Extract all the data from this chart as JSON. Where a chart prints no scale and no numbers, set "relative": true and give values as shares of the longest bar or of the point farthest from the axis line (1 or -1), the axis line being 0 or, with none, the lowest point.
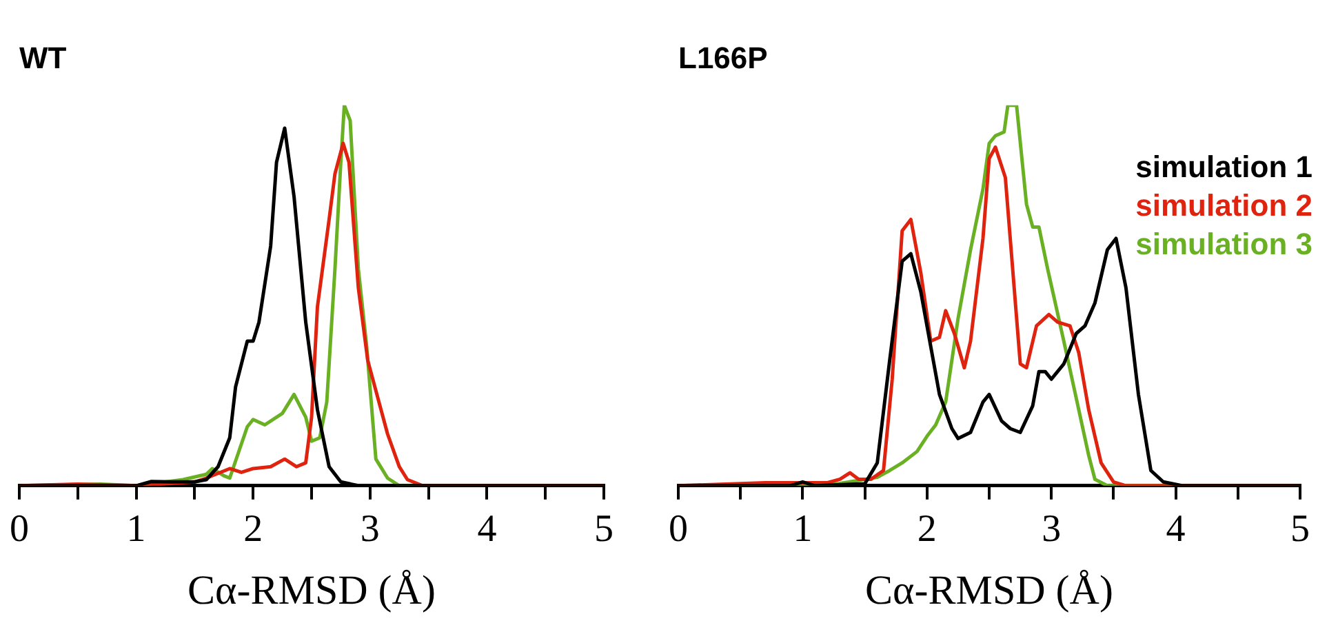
{
  "chart_data": [
    {
      "type": "line",
      "title": "WT",
      "xlabel": "Cα-RMSD (Å)",
      "relative": true,
      "legend": false,
      "xlim": [
        0,
        5
      ],
      "xticks": [
        0,
        {
          "value": 0.5,
          "label": null
        },
        1,
        {
          "value": 1.5,
          "label": null
        },
        2,
        {
          "value": 2.5,
          "label": null
        },
        3,
        {
          "value": 3.5,
          "label": null
        },
        4,
        {
          "value": 4.5,
          "label": null
        },
        5
      ],
      "series": [
        {
          "color": "#000000",
          "x": [
            0,
            1.0,
            1.13,
            1.3,
            1.5,
            1.6,
            1.7,
            1.8,
            1.85,
            1.95,
            2.0,
            2.05,
            2.15,
            2.2,
            2.27,
            2.35,
            2.45,
            2.55,
            2.65,
            2.75,
            2.9,
            5
          ],
          "values": [
            0,
            0,
            0.011,
            0.01,
            0.01,
            0.016,
            0.05,
            0.126,
            0.26,
            0.38,
            0.38,
            0.43,
            0.63,
            0.85,
            0.94,
            0.76,
            0.43,
            0.2,
            0.05,
            0.01,
            0,
            0
          ]
        },
        {
          "color": "#e0230f",
          "x": [
            0,
            0.5,
            1.0,
            1.5,
            1.6,
            1.8,
            1.9,
            2.0,
            2.15,
            2.27,
            2.37,
            2.45,
            2.5,
            2.55,
            2.65,
            2.7,
            2.77,
            2.82,
            2.9,
            2.98,
            3.05,
            3.15,
            3.25,
            3.32,
            3.45,
            5
          ],
          "values": [
            0,
            0.004,
            0,
            0.01,
            0.02,
            0.045,
            0.035,
            0.045,
            0.05,
            0.07,
            0.05,
            0.06,
            0.18,
            0.47,
            0.7,
            0.82,
            0.9,
            0.85,
            0.52,
            0.33,
            0.25,
            0.136,
            0.05,
            0.016,
            0,
            0
          ]
        },
        {
          "color": "#6ab023",
          "x": [
            0,
            0.7,
            1.0,
            1.4,
            1.6,
            1.65,
            1.75,
            1.8,
            1.95,
            2.0,
            2.1,
            2.25,
            2.35,
            2.45,
            2.5,
            2.57,
            2.63,
            2.7,
            2.75,
            2.78,
            2.83,
            2.9,
            2.97,
            3.05,
            3.15,
            3.25,
            5
          ],
          "values": [
            0,
            0.004,
            0,
            0.016,
            0.03,
            0.045,
            0.026,
            0.02,
            0.155,
            0.174,
            0.16,
            0.19,
            0.24,
            0.18,
            0.117,
            0.126,
            0.22,
            0.57,
            0.85,
            1.0,
            0.96,
            0.57,
            0.37,
            0.07,
            0.02,
            0,
            0
          ]
        }
      ]
    },
    {
      "type": "line",
      "title": "L166P",
      "xlabel": "Cα-RMSD (Å)",
      "relative": true,
      "legend": "top right",
      "xlim": [
        0,
        5
      ],
      "xticks": [
        0,
        {
          "value": 0.5,
          "label": null
        },
        1,
        {
          "value": 1.5,
          "label": null
        },
        2,
        {
          "value": 2.5,
          "label": null
        },
        3,
        {
          "value": 3.5,
          "label": null
        },
        4,
        {
          "value": 4.5,
          "label": null
        },
        5
      ],
      "series": [
        {
          "name": "simulation 1",
          "color": "#000000",
          "x": [
            0,
            0.9,
            1.0,
            1.1,
            1.5,
            1.6,
            1.7,
            1.8,
            1.87,
            1.95,
            2.05,
            2.1,
            2.2,
            2.25,
            2.35,
            2.45,
            2.5,
            2.6,
            2.67,
            2.75,
            2.85,
            2.9,
            2.95,
            3.0,
            3.1,
            3.2,
            3.27,
            3.35,
            3.45,
            3.52,
            3.6,
            3.7,
            3.8,
            3.9,
            4.05,
            5
          ],
          "values": [
            0,
            0,
            0.01,
            0,
            0.005,
            0.06,
            0.33,
            0.59,
            0.61,
            0.51,
            0.33,
            0.24,
            0.15,
            0.124,
            0.14,
            0.22,
            0.24,
            0.17,
            0.15,
            0.14,
            0.21,
            0.3,
            0.3,
            0.28,
            0.32,
            0.4,
            0.42,
            0.48,
            0.62,
            0.65,
            0.52,
            0.24,
            0.04,
            0.01,
            0,
            0
          ]
        },
        {
          "name": "simulation 2",
          "color": "#e0230f",
          "x": [
            0,
            0.7,
            1.2,
            1.3,
            1.38,
            1.45,
            1.55,
            1.65,
            1.72,
            1.8,
            1.87,
            1.95,
            2.03,
            2.1,
            2.15,
            2.22,
            2.3,
            2.35,
            2.45,
            2.5,
            2.55,
            2.63,
            2.75,
            2.8,
            2.88,
            2.98,
            3.05,
            3.15,
            3.22,
            3.3,
            3.4,
            3.5,
            3.6,
            5
          ],
          "values": [
            0,
            0.008,
            0.008,
            0.017,
            0.034,
            0.017,
            0.017,
            0.04,
            0.28,
            0.67,
            0.7,
            0.56,
            0.38,
            0.39,
            0.46,
            0.4,
            0.31,
            0.38,
            0.65,
            0.86,
            0.89,
            0.81,
            0.32,
            0.31,
            0.42,
            0.45,
            0.43,
            0.42,
            0.35,
            0.2,
            0.06,
            0.01,
            0,
            0
          ]
        },
        {
          "name": "simulation 3",
          "color": "#6ab023",
          "x": [
            0,
            1.1,
            1.3,
            1.6,
            1.7,
            1.8,
            1.92,
            2.0,
            2.07,
            2.15,
            2.25,
            2.35,
            2.45,
            2.5,
            2.55,
            2.62,
            2.65,
            2.72,
            2.8,
            2.85,
            2.9,
            2.97,
            3.1,
            3.2,
            3.3,
            3.35,
            3.45,
            5
          ],
          "values": [
            0,
            0,
            0.006,
            0.022,
            0.04,
            0.06,
            0.09,
            0.13,
            0.16,
            0.22,
            0.44,
            0.62,
            0.78,
            0.9,
            0.92,
            0.93,
            1.0,
            1.0,
            0.74,
            0.68,
            0.68,
            0.57,
            0.38,
            0.23,
            0.08,
            0.017,
            0,
            0
          ]
        }
      ]
    }
  ]
}
